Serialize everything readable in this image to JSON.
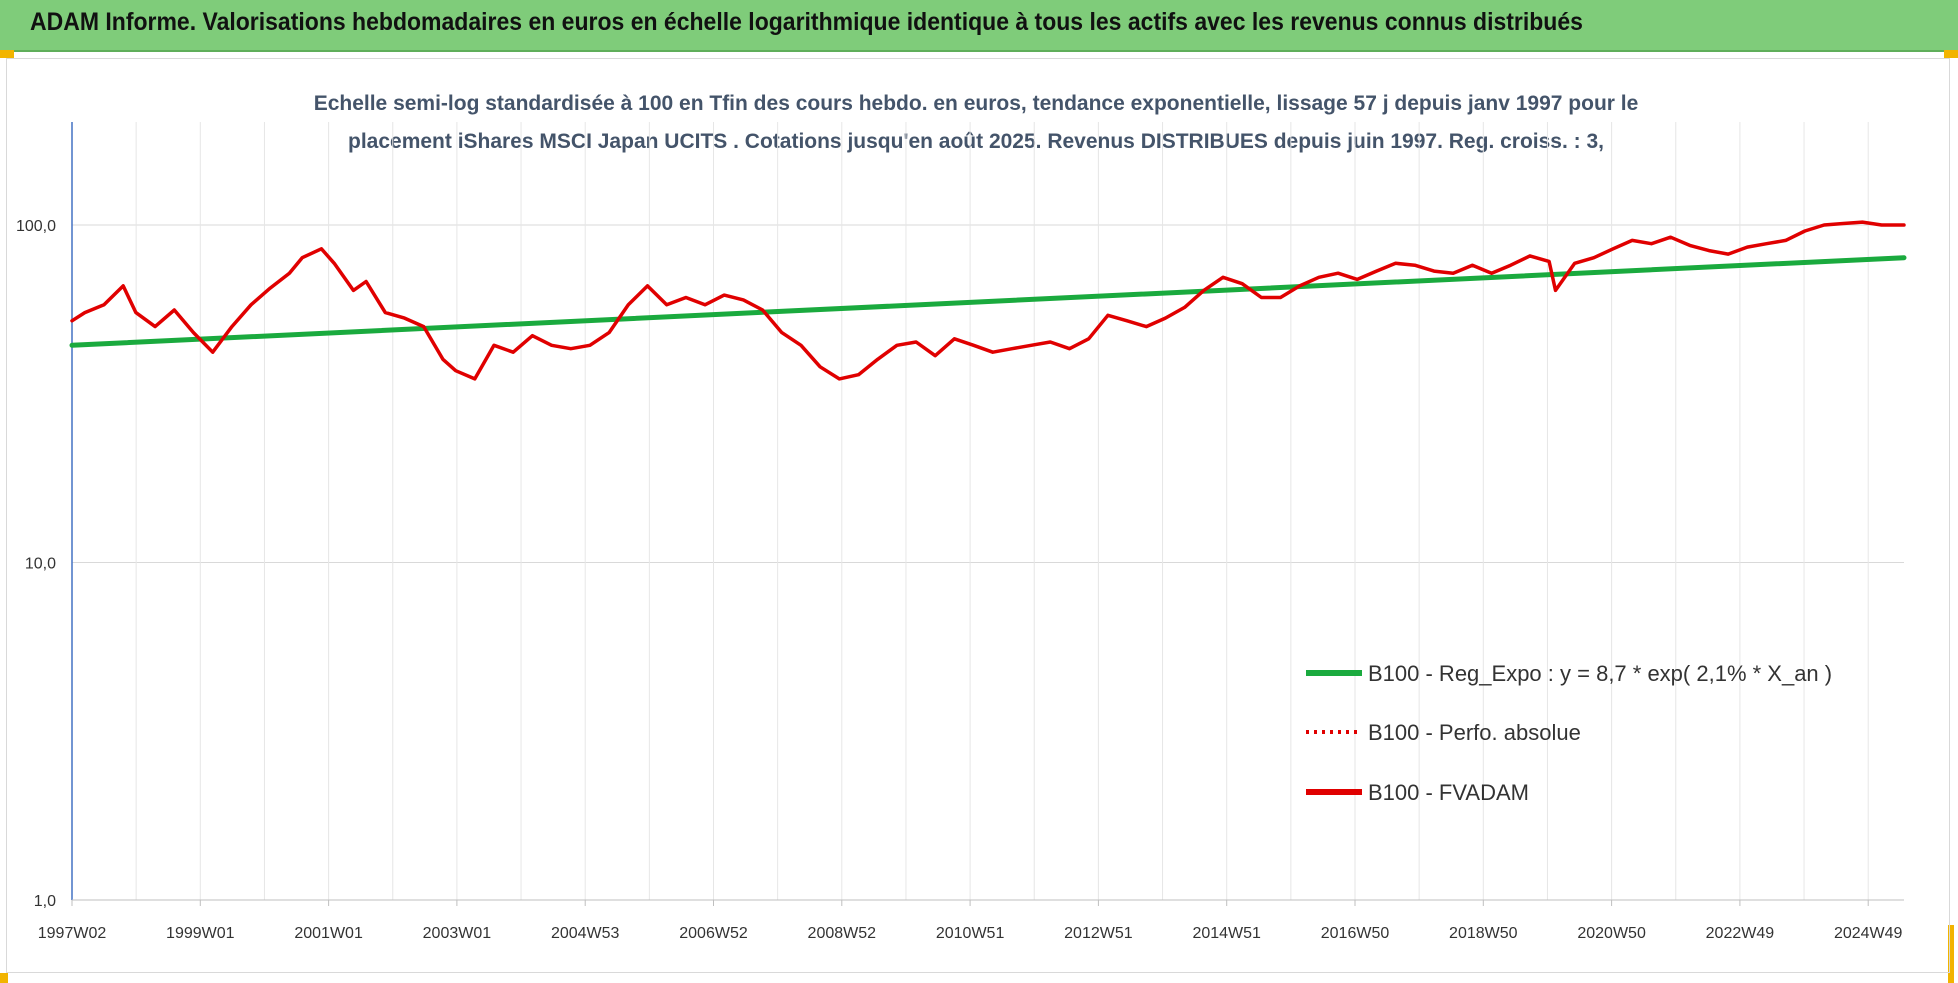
{
  "header": {
    "title": "ADAM Informe. Valorisations hebdomadaires en euros en échelle logarithmique identique à tous les actifs avec les revenus connus distribués",
    "background": "#7fcc7a"
  },
  "chart_data": {
    "type": "line",
    "title_lines": [
      "Echelle semi-log standardisée à 100 en Tfin des cours hebdo. en euros, tendance exponentielle, lissage 57 j depuis janv 1997 pour le",
      "placement iShares MSCI Japan UCITS . Cotations jusqu'en août 2025. Revenus DISTRIBUES depuis juin 1997. Reg. croiss. : 3,"
    ],
    "y_scale": "log",
    "ylim": [
      1,
      200
    ],
    "y_ticks": [
      {
        "value": 1,
        "label": "1,0"
      },
      {
        "value": 10,
        "label": "10,0"
      },
      {
        "value": 100,
        "label": "100,0"
      }
    ],
    "x_ticks": [
      "1997W02",
      "1999W01",
      "2001W01",
      "2003W01",
      "2004W53",
      "2006W52",
      "2008W52",
      "2010W51",
      "2012W51",
      "2014W51",
      "2016W50",
      "2018W50",
      "2020W50",
      "2022W49",
      "2024W49"
    ],
    "xlim": [
      1997.0,
      2025.65
    ],
    "grid": "vertical",
    "legend_position": "bottom-right",
    "series": [
      {
        "name": "B100 - Reg_Expo : y = 8,7 * exp( 2,1% *  X_an )",
        "color": "#1aaa3e",
        "style": "solid",
        "x": [
          1997.0,
          2025.65
        ],
        "y": [
          44.0,
          80.0
        ]
      },
      {
        "name": "B100 - Perfo. absolue",
        "color": "#e00000",
        "style": "dotted",
        "x": [],
        "y": []
      },
      {
        "name": "B100 - FVADAM",
        "color": "#e00000",
        "style": "solid",
        "x": [
          1997.0,
          1997.2,
          1997.5,
          1997.8,
          1998.0,
          1998.3,
          1998.6,
          1998.9,
          1999.2,
          1999.5,
          1999.8,
          2000.1,
          2000.4,
          2000.6,
          2000.9,
          2001.1,
          2001.4,
          2001.6,
          2001.9,
          2002.2,
          2002.5,
          2002.8,
          2003.0,
          2003.3,
          2003.6,
          2003.9,
          2004.2,
          2004.5,
          2004.8,
          2005.1,
          2005.4,
          2005.7,
          2006.0,
          2006.3,
          2006.6,
          2006.9,
          2007.2,
          2007.5,
          2007.8,
          2008.1,
          2008.4,
          2008.7,
          2009.0,
          2009.3,
          2009.6,
          2009.9,
          2010.2,
          2010.5,
          2010.8,
          2011.1,
          2011.4,
          2011.7,
          2012.0,
          2012.3,
          2012.6,
          2012.9,
          2013.2,
          2013.5,
          2013.8,
          2014.1,
          2014.4,
          2014.7,
          2015.0,
          2015.3,
          2015.6,
          2015.9,
          2016.2,
          2016.5,
          2016.8,
          2017.1,
          2017.4,
          2017.7,
          2018.0,
          2018.3,
          2018.6,
          2018.9,
          2019.2,
          2019.5,
          2019.8,
          2020.1,
          2020.2,
          2020.5,
          2020.8,
          2021.1,
          2021.4,
          2021.7,
          2022.0,
          2022.3,
          2022.6,
          2022.9,
          2023.2,
          2023.5,
          2023.8,
          2024.1,
          2024.4,
          2024.7,
          2025.0,
          2025.3,
          2025.65
        ],
        "y": [
          52,
          55,
          58,
          66,
          55,
          50,
          56,
          48,
          42,
          50,
          58,
          65,
          72,
          80,
          85,
          77,
          64,
          68,
          55,
          53,
          50,
          40,
          37,
          35,
          44,
          42,
          47,
          44,
          43,
          44,
          48,
          58,
          66,
          58,
          61,
          58,
          62,
          60,
          56,
          48,
          44,
          38,
          35,
          36,
          40,
          44,
          45,
          41,
          46,
          44,
          42,
          43,
          44,
          45,
          43,
          46,
          54,
          52,
          50,
          53,
          57,
          64,
          70,
          67,
          61,
          61,
          66,
          70,
          72,
          69,
          73,
          77,
          76,
          73,
          72,
          76,
          72,
          76,
          81,
          78,
          64,
          77,
          80,
          85,
          90,
          88,
          92,
          87,
          84,
          82,
          86,
          88,
          90,
          96,
          100,
          101,
          102,
          100,
          100
        ]
      }
    ]
  }
}
